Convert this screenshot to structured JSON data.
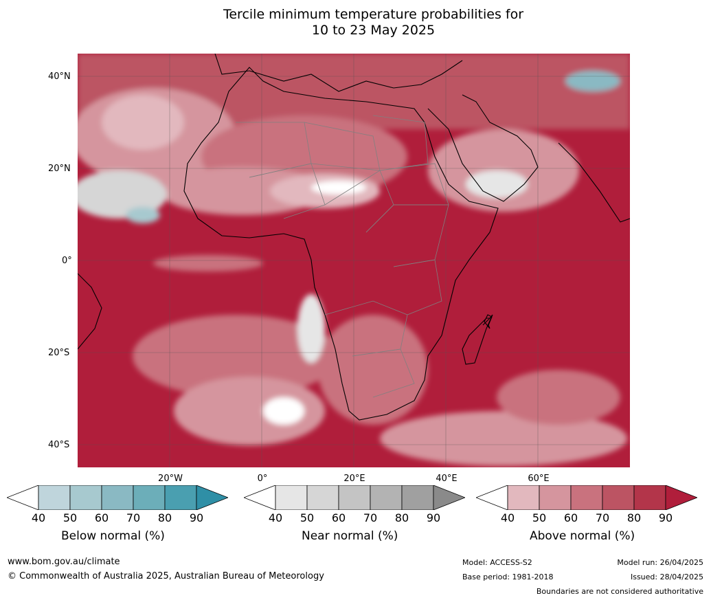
{
  "title_line1": "Tercile minimum temperature probabilities for",
  "title_line2": "10 to 23 May 2025",
  "lat_labels": [
    "40°N",
    "20°N",
    "0°",
    "20°S",
    "40°S"
  ],
  "lon_labels": [
    "20°W",
    "0°",
    "20°E",
    "40°E",
    "60°E"
  ],
  "legends": {
    "below": {
      "caption": "Below normal (%)",
      "ticks": [
        "40",
        "50",
        "60",
        "70",
        "80",
        "90"
      ],
      "colors": [
        "#ffffff",
        "#bfd5dc",
        "#a7c9cf",
        "#8ab9c3",
        "#6caeb9",
        "#4a9fb0",
        "#2f8fa6"
      ]
    },
    "near": {
      "caption": "Near normal (%)",
      "ticks": [
        "40",
        "50",
        "60",
        "70",
        "80",
        "90"
      ],
      "colors": [
        "#ffffff",
        "#e6e6e6",
        "#d6d6d6",
        "#c4c4c4",
        "#b3b3b3",
        "#a0a0a0",
        "#8a8a8a"
      ]
    },
    "above": {
      "caption": "Above normal (%)",
      "ticks": [
        "40",
        "50",
        "60",
        "70",
        "80",
        "90"
      ],
      "colors": [
        "#ffffff",
        "#e2b8be",
        "#d5959e",
        "#c9727e",
        "#bc5463",
        "#b3354a",
        "#b01e3b"
      ]
    }
  },
  "footer": {
    "url": "www.bom.gov.au/climate",
    "copyright": "© Commonwealth of Australia 2025, Australian Bureau of Meteorology",
    "model": "Model: ACCESS-S2",
    "base_period": "Base period: 1981-2018",
    "model_run": "Model run: 26/04/2025",
    "issued": "Issued: 28/04/2025",
    "disclaimer": "Boundaries are not considered authoritative"
  }
}
